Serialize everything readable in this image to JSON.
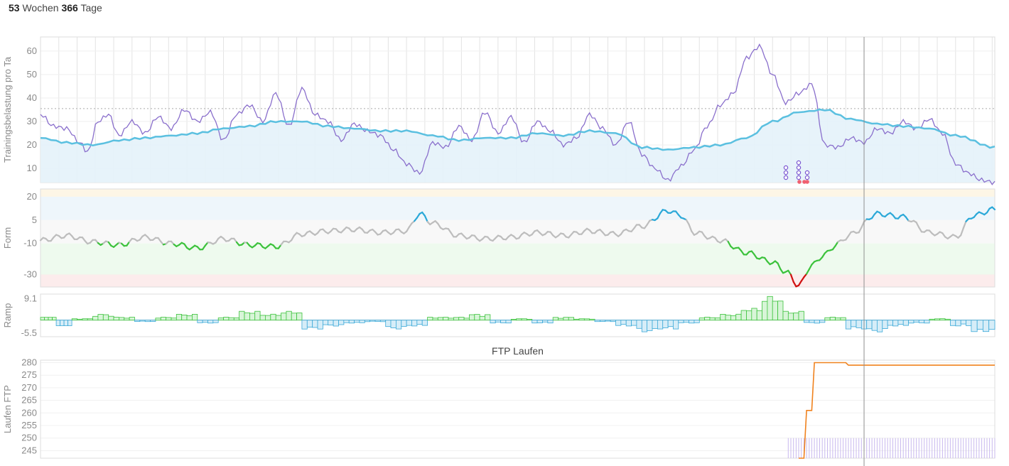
{
  "summary": {
    "weeks": "53",
    "weeks_label": "Wochen",
    "days": "366",
    "days_label": "Tage"
  },
  "colors": {
    "fitness": "#5bc0e0",
    "fatigue": "#8a6fcc",
    "form_neutral": "#bdbdbd",
    "form_green": "#3cc23c",
    "form_red": "#d01010",
    "form_blue": "#2aa8d8",
    "ramp_pos": "#3cc23c",
    "ramp_neg": "#3aa8d8",
    "ftp": "#f0821e",
    "grid": "#e3e3e3"
  },
  "chart_data": [
    {
      "type": "line",
      "ylabel": "Trainingsbelastung pro Ta",
      "ylim": [
        4,
        66
      ],
      "yticks": [
        10,
        20,
        30,
        40,
        50,
        60
      ],
      "x_range": [
        0,
        365
      ],
      "reference_line": 35.5,
      "series": [
        {
          "key": "fitness",
          "x": [
            0,
            10,
            20,
            30,
            40,
            50,
            60,
            70,
            80,
            90,
            100,
            110,
            120,
            130,
            140,
            150,
            160,
            170,
            180,
            190,
            200,
            210,
            220,
            230,
            240,
            250,
            260,
            270,
            280,
            290,
            300,
            310,
            320,
            330,
            340,
            350,
            365
          ],
          "values": [
            23,
            21,
            20,
            22,
            23,
            24,
            25,
            27,
            28,
            30,
            30,
            28,
            27,
            26,
            26,
            24,
            22,
            23,
            23,
            25,
            24,
            26,
            25,
            19,
            18,
            19,
            20,
            23,
            30,
            34,
            35,
            31,
            29,
            28,
            27,
            24,
            19
          ]
        },
        {
          "key": "fatigue",
          "x": [
            0,
            5,
            10,
            15,
            18,
            22,
            26,
            30,
            35,
            40,
            45,
            50,
            55,
            60,
            65,
            70,
            75,
            80,
            85,
            90,
            95,
            100,
            105,
            110,
            115,
            120,
            125,
            130,
            135,
            140,
            145,
            150,
            155,
            160,
            165,
            170,
            175,
            180,
            185,
            190,
            195,
            200,
            205,
            210,
            215,
            220,
            225,
            230,
            235,
            240,
            245,
            250,
            255,
            260,
            265,
            270,
            275,
            280,
            285,
            290,
            295,
            300,
            305,
            310,
            315,
            320,
            325,
            330,
            335,
            340,
            345,
            350,
            355,
            360,
            365
          ],
          "values": [
            33,
            28,
            27,
            21,
            17,
            30,
            33,
            24,
            30,
            25,
            32,
            27,
            35,
            30,
            34,
            22,
            33,
            37,
            30,
            42,
            28,
            44,
            33,
            30,
            22,
            29,
            26,
            24,
            18,
            12,
            8,
            21,
            19,
            28,
            22,
            34,
            25,
            32,
            21,
            30,
            26,
            20,
            23,
            33,
            27,
            20,
            30,
            16,
            10,
            5,
            11,
            18,
            28,
            37,
            42,
            57,
            62,
            50,
            38,
            42,
            46,
            20,
            19,
            23,
            21,
            27,
            25,
            30,
            27,
            31,
            25,
            12,
            8,
            5,
            4
          ]
        }
      ]
    },
    {
      "type": "line",
      "ylabel": "Form",
      "ylim": [
        -38,
        25
      ],
      "yticks": [
        20,
        5,
        -10,
        -30
      ],
      "x_range": [
        0,
        365
      ],
      "zones": [
        {
          "from": 20,
          "to": 25,
          "color": "#fdf6e6"
        },
        {
          "from": 5,
          "to": 20,
          "color": "#eef6fb"
        },
        {
          "from": -10,
          "to": 5,
          "color": "#f8f8f8"
        },
        {
          "from": -30,
          "to": -10,
          "color": "#eefaee"
        },
        {
          "from": -38,
          "to": -30,
          "color": "#fcecec"
        }
      ],
      "x": [
        0,
        10,
        20,
        30,
        40,
        50,
        60,
        70,
        80,
        90,
        100,
        110,
        120,
        130,
        140,
        145,
        150,
        160,
        170,
        180,
        190,
        200,
        210,
        220,
        230,
        240,
        245,
        250,
        260,
        270,
        280,
        285,
        290,
        295,
        300,
        305,
        310,
        320,
        330,
        340,
        350,
        357,
        365
      ],
      "values": [
        -8,
        -5,
        -9,
        -11,
        -6,
        -10,
        -13,
        -7,
        -11,
        -12,
        -4,
        -2,
        -1,
        -3,
        -2,
        9,
        3,
        -5,
        -7,
        -6,
        -3,
        -5,
        -2,
        -4,
        1,
        11,
        8,
        -3,
        -8,
        -16,
        -22,
        -28,
        -37,
        -24,
        -17,
        -10,
        -4,
        9,
        7,
        -3,
        -6,
        8,
        12
      ]
    },
    {
      "type": "step",
      "ylabel": "Ramp",
      "ylim": [
        -7,
        11
      ],
      "yticks": [
        9.1,
        -5.5
      ],
      "tick_labels": [
        "9.1",
        "-5.5"
      ],
      "x_range": [
        0,
        365
      ],
      "x": [
        0,
        6,
        12,
        20,
        28,
        36,
        44,
        52,
        60,
        68,
        76,
        84,
        92,
        100,
        108,
        116,
        124,
        132,
        140,
        148,
        156,
        164,
        172,
        180,
        188,
        196,
        204,
        212,
        220,
        228,
        236,
        244,
        252,
        260,
        268,
        276,
        284,
        292,
        300,
        308,
        316,
        324,
        332,
        340,
        348,
        356
      ],
      "values": [
        1,
        -2,
        0.5,
        2,
        1,
        -0.5,
        1,
        2,
        -1,
        1,
        3,
        2,
        3,
        -3,
        -2,
        -1,
        -0.5,
        -3,
        -2,
        1,
        1,
        2,
        -1,
        0.5,
        -1,
        1,
        0.5,
        -0.5,
        -2,
        -4,
        -3,
        -1,
        1,
        2,
        4,
        8,
        3,
        -1,
        1,
        -3,
        -4,
        -2,
        -1,
        0.5,
        -2,
        -4
      ]
    },
    {
      "type": "line",
      "title": "FTP Laufen",
      "ylabel": "Laufen FTP",
      "ylim": [
        242,
        281
      ],
      "yticks": [
        245,
        250,
        255,
        260,
        265,
        270,
        275,
        280
      ],
      "x_range": [
        0,
        365
      ],
      "x": [
        290,
        292,
        293,
        294,
        295,
        296,
        297,
        308,
        309,
        365
      ],
      "values": [
        242,
        242,
        261,
        261,
        261,
        280,
        280,
        280,
        279,
        279
      ],
      "markers_from_x": 286,
      "markers_value": 250
    }
  ],
  "crosshair_x": 315
}
